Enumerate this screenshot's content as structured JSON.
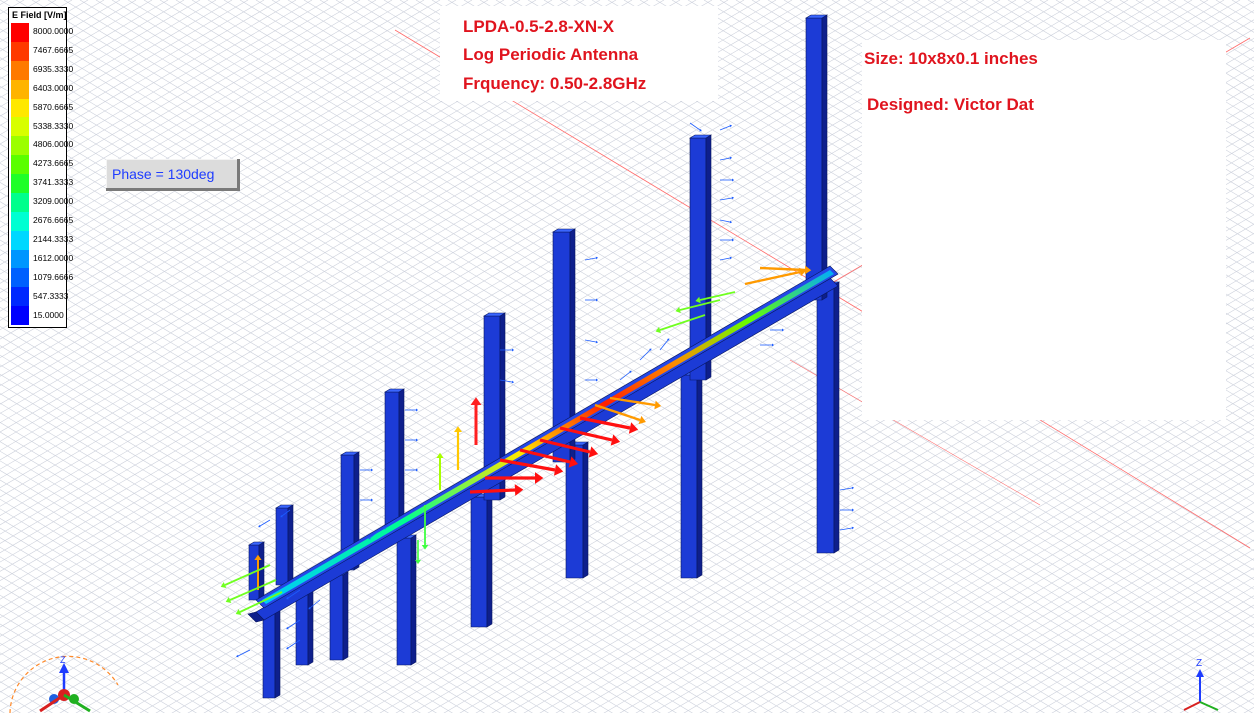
{
  "legend": {
    "title": "E Field [V/m]",
    "values": [
      "8000.0000",
      "7467.6665",
      "6935.3330",
      "6403.0000",
      "5870.6665",
      "5338.3330",
      "4806.0000",
      "4273.6665",
      "3741.3333",
      "3209.0000",
      "2676.6665",
      "2144.3333",
      "1612.0000",
      "1079.6666",
      "547.3333",
      "15.0000"
    ],
    "colors": [
      "#ff0000",
      "#ff3a00",
      "#ff7a00",
      "#ffb400",
      "#ffe800",
      "#d8ff00",
      "#9cff00",
      "#5aff00",
      "#1eff28",
      "#00ff8c",
      "#00ffd2",
      "#00d8ff",
      "#0096ff",
      "#0060ff",
      "#0028ff",
      "#0000ff"
    ]
  },
  "phase": {
    "label": "Phase = 130deg"
  },
  "annotations": {
    "model_name": "LPDA-0.5-2.8-XN-X",
    "antenna_type": "Log Periodic Antenna",
    "frequency": "Frquency: 0.50-2.8GHz",
    "size": "Size: 10x8x0.1 inches",
    "designer": "Designed: Victor Dat"
  },
  "axes_triad": {
    "z_label": "Z"
  },
  "colors": {
    "text_red": "#e0141e",
    "phase_text": "#1e3cff",
    "grid": "#c8ccd8",
    "grid_axis_red": "#ff6060",
    "structure_blue": "#1c3bd6"
  }
}
